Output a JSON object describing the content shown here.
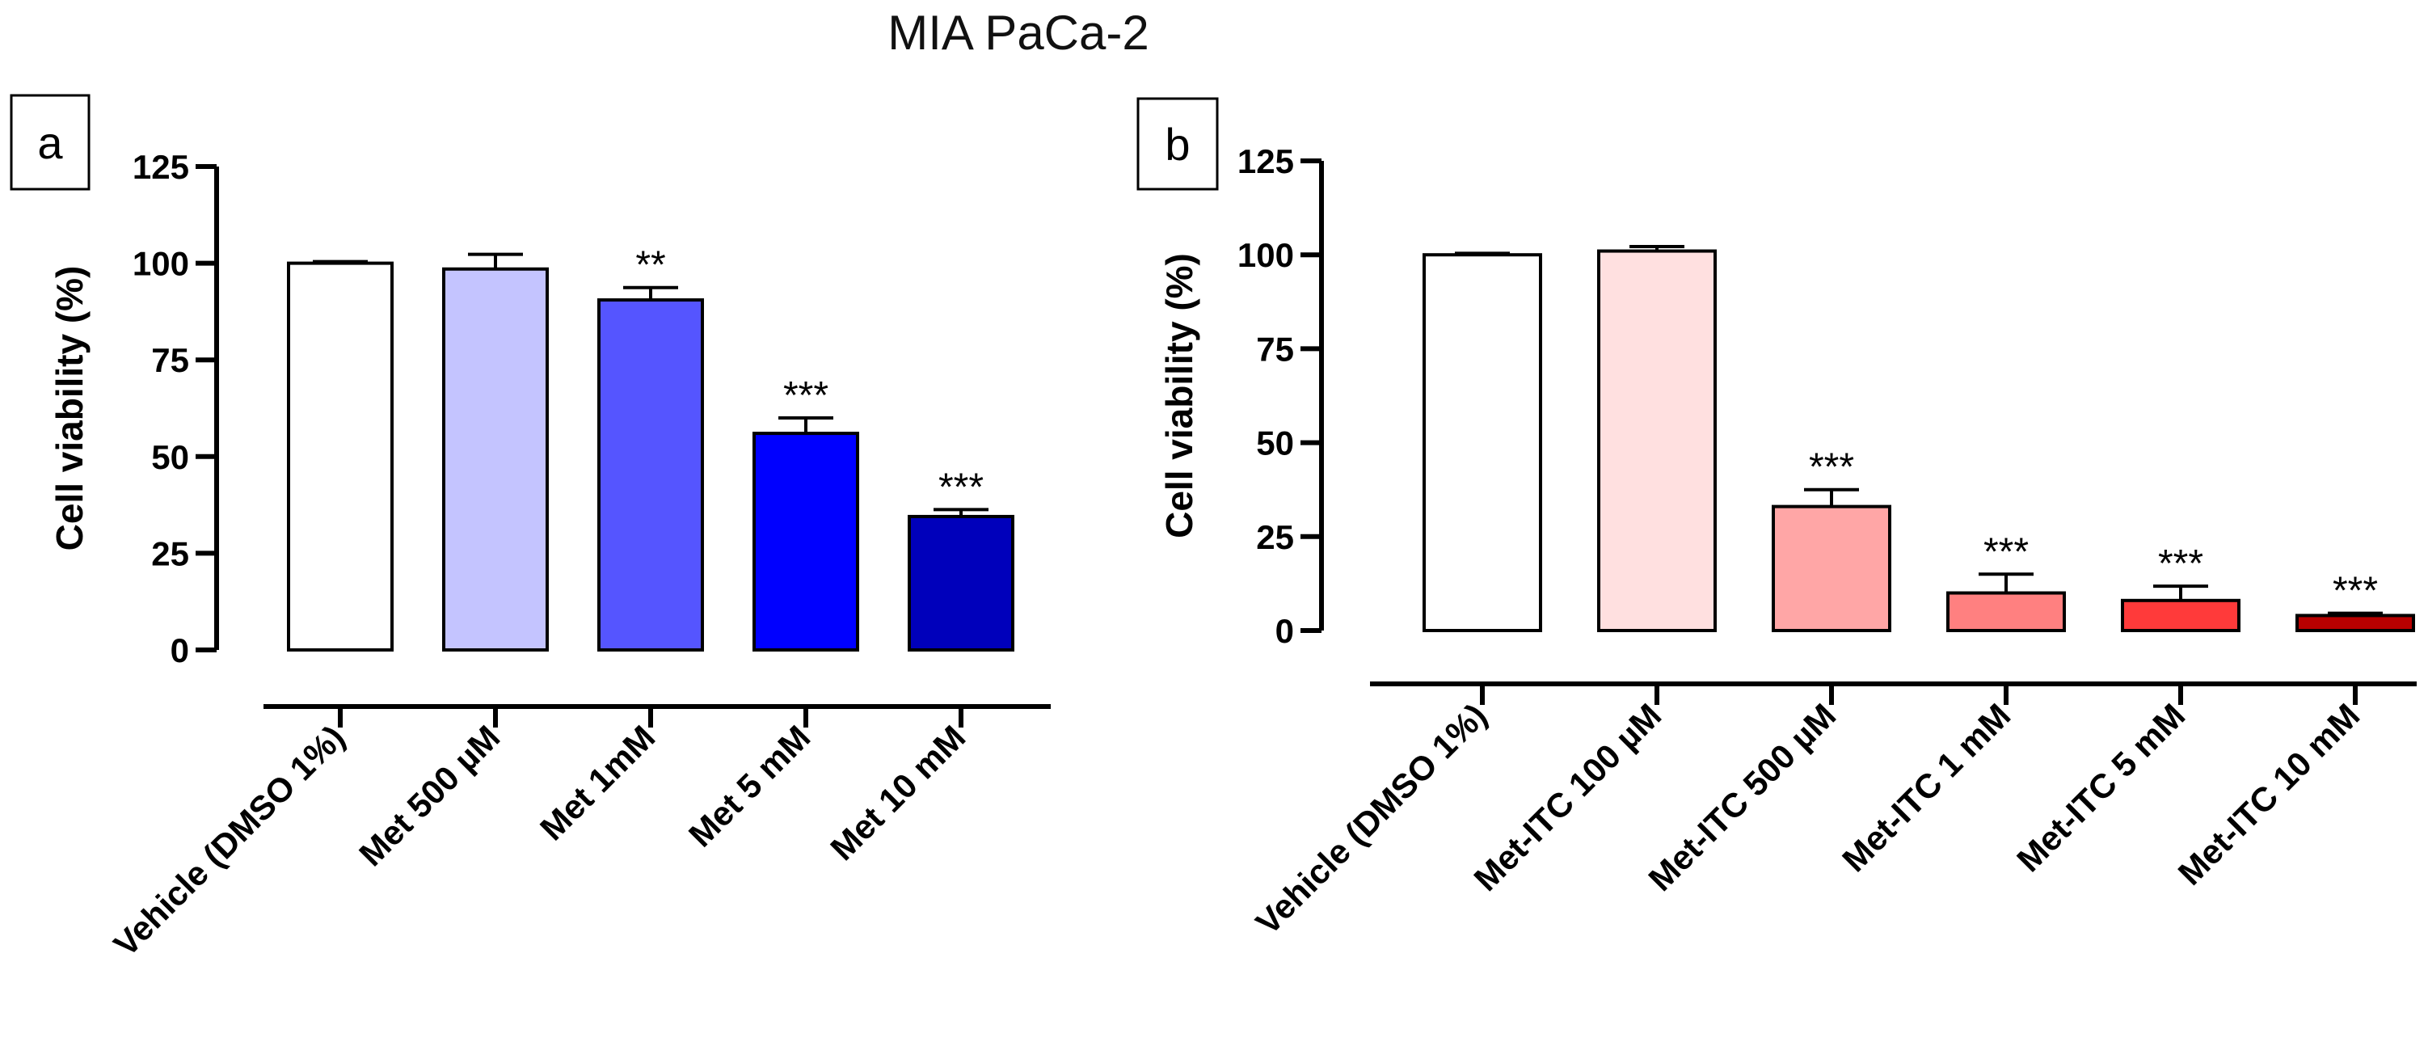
{
  "figure_title": "MIA PaCa-2",
  "chart_data": [
    {
      "type": "bar",
      "panel_label": "a",
      "title": "",
      "xlabel": "",
      "ylabel": "Cell viability (%)",
      "ylim": [
        0,
        125
      ],
      "yticks": [
        0,
        25,
        50,
        75,
        100,
        125
      ],
      "ytick_labels": [
        "0",
        "25",
        "50",
        "75",
        "100",
        "125"
      ],
      "grid": false,
      "categories": [
        "Vehicle (DMSO 1%)",
        "Met 500 µM",
        "Met 1mM",
        "Met 5 mM",
        "Met 10 mM"
      ],
      "values": [
        100,
        98.5,
        90.5,
        56,
        34.5
      ],
      "errors": [
        0.4,
        3.8,
        3.2,
        4.0,
        1.8
      ],
      "significance": [
        "",
        "",
        "**",
        "***",
        "***"
      ],
      "colors": [
        "#ffffff",
        "#c4c4ff",
        "#5555ff",
        "#0000ff",
        "#0000bb"
      ]
    },
    {
      "type": "bar",
      "panel_label": "b",
      "title": "",
      "xlabel": "",
      "ylabel": "Cell viability (%)",
      "ylim": [
        0,
        125
      ],
      "yticks": [
        0,
        25,
        50,
        75,
        100,
        125
      ],
      "ytick_labels": [
        "0",
        "25",
        "50",
        "75",
        "100",
        "125"
      ],
      "grid": false,
      "categories": [
        "Vehicle (DMSO 1%)",
        "Met-ITC 100  µM",
        "Met-ITC 500  µM",
        "Met-ITC 1 mM",
        "Met-ITC 5 mM",
        "Met-ITC 10 mM"
      ],
      "values": [
        100,
        101,
        33,
        10,
        8,
        4
      ],
      "errors": [
        0.4,
        1.2,
        4.5,
        5.0,
        3.8,
        0.6
      ],
      "significance": [
        "",
        "",
        "***",
        "***",
        "***",
        "***"
      ],
      "colors": [
        "#ffffff",
        "#ffe0e0",
        "#ffa6a6",
        "#ff8080",
        "#ff3a3a",
        "#b80000"
      ]
    }
  ]
}
